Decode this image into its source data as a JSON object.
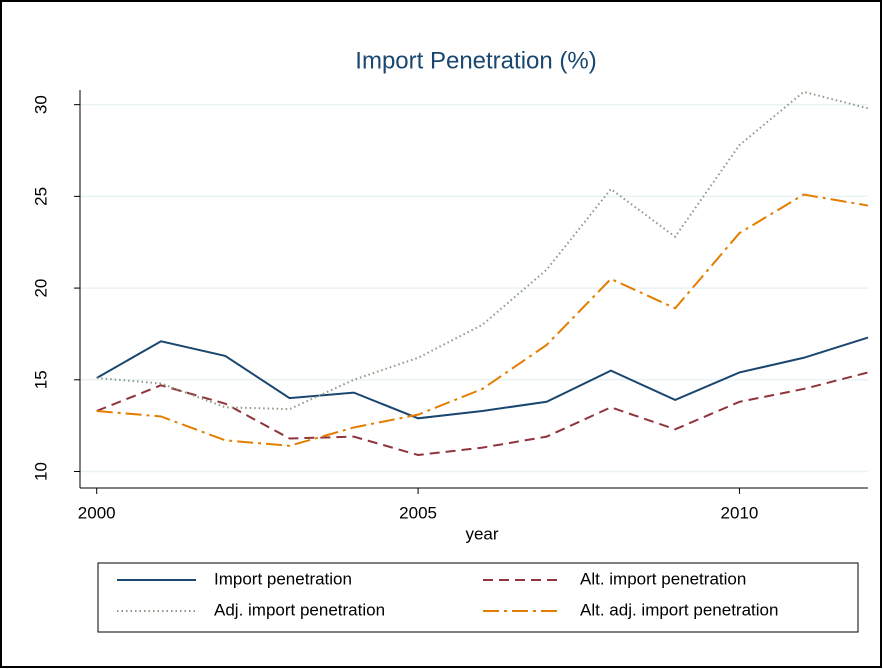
{
  "chart_data": {
    "type": "line",
    "title": "Import Penetration (%)",
    "x_label": "year",
    "x": [
      2000,
      2001,
      2002,
      2003,
      2004,
      2005,
      2006,
      2007,
      2008,
      2009,
      2010,
      2011,
      2012
    ],
    "series": [
      {
        "name": "Import penetration",
        "color": "#1a476f",
        "dash": "solid",
        "values": [
          15.1,
          17.1,
          16.3,
          14.0,
          14.3,
          12.9,
          13.3,
          13.8,
          15.5,
          13.9,
          15.4,
          16.2,
          17.3
        ]
      },
      {
        "name": "Alt. import penetration",
        "color": "#90353b",
        "dash": "dashed",
        "values": [
          13.3,
          14.7,
          13.7,
          11.8,
          11.9,
          10.9,
          11.3,
          11.9,
          13.5,
          12.3,
          13.8,
          14.5,
          15.4
        ]
      },
      {
        "name": "Adj. import penetration",
        "color": "#8a9a84",
        "dash": "dotted",
        "values": [
          15.1,
          14.8,
          13.5,
          13.4,
          15.0,
          16.2,
          18.0,
          21.0,
          25.4,
          22.8,
          27.8,
          30.7,
          29.8
        ]
      },
      {
        "name": "Alt. adj. import penetration",
        "color": "#e37e00",
        "dash": "dashdot",
        "values": [
          13.3,
          13.0,
          11.7,
          11.4,
          12.4,
          13.1,
          14.5,
          16.9,
          20.5,
          18.9,
          23.0,
          25.1,
          24.5
        ]
      }
    ],
    "xlim": [
      1999.74,
      2012
    ],
    "xticks": [
      2000,
      2005,
      2010
    ],
    "ylim": [
      9.1,
      30.8
    ],
    "yticks": [
      10,
      15,
      20,
      25,
      30
    ],
    "grid": true,
    "legend": "bottom"
  }
}
